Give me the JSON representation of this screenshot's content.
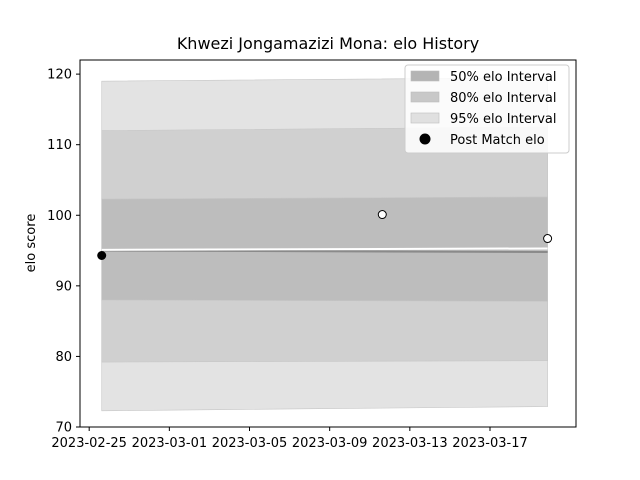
{
  "chart_data": {
    "type": "line",
    "title": "Khwezi Jongamazizi Mona: elo History",
    "xlabel": "",
    "ylabel": "elo score",
    "x_ticks": [
      "2023-02-25",
      "2023-03-01",
      "2023-03-05",
      "2023-03-09",
      "2023-03-13",
      "2023-03-17"
    ],
    "y_ticks": [
      70,
      80,
      90,
      100,
      110,
      120
    ],
    "xlim": [
      "2023-02-24T13:00",
      "2023-03-21T07:00"
    ],
    "ylim": [
      70,
      122
    ],
    "grid": false,
    "legend_position": "top-right",
    "bands": [
      {
        "name": "95% elo Interval",
        "color": "#e3e3e3",
        "x": [
          "2023-02-25T15:00",
          "2023-03-19T21:00"
        ],
        "lower": [
          72.3,
          72.9
        ],
        "upper": [
          119.0,
          119.5
        ]
      },
      {
        "name": "80% elo Interval",
        "color": "#d0d0d0",
        "x": [
          "2023-02-25T15:00",
          "2023-03-19T21:00"
        ],
        "lower": [
          79.2,
          79.4
        ],
        "upper": [
          112.0,
          112.5
        ]
      },
      {
        "name": "50% elo Interval",
        "color": "#bdbdbd",
        "x": [
          "2023-02-25T15:00",
          "2023-03-19T21:00"
        ],
        "lower": [
          88.0,
          87.8
        ],
        "upper": [
          102.3,
          102.6
        ]
      }
    ],
    "center_line": {
      "x": [
        "2023-02-25T15:00",
        "2023-03-19T21:00"
      ],
      "y": [
        95.0,
        94.8
      ],
      "color": "#8a8a8a"
    },
    "highlight_line": {
      "x": [
        "2023-02-25T15:00",
        "2023-03-19T21:00"
      ],
      "y": [
        95.1,
        95.3
      ],
      "color": "#ffffff"
    },
    "series": [
      {
        "name": "Post Match elo",
        "type": "scatter",
        "points": [
          {
            "x": "2023-02-25T15:00",
            "y": 94.3,
            "fill": "#000000"
          },
          {
            "x": "2023-03-11T15:00",
            "y": 100.1,
            "fill": "#ffffff"
          },
          {
            "x": "2023-03-19T21:00",
            "y": 96.7,
            "fill": "#ffffff"
          }
        ]
      }
    ],
    "legend": [
      {
        "label": "50% elo Interval",
        "kind": "patch",
        "color": "#b4b4b4"
      },
      {
        "label": "80% elo Interval",
        "kind": "patch",
        "color": "#c8c8c8"
      },
      {
        "label": "95% elo Interval",
        "kind": "patch",
        "color": "#e0e0e0"
      },
      {
        "label": "Post Match elo",
        "kind": "marker",
        "color": "#000000"
      }
    ]
  }
}
